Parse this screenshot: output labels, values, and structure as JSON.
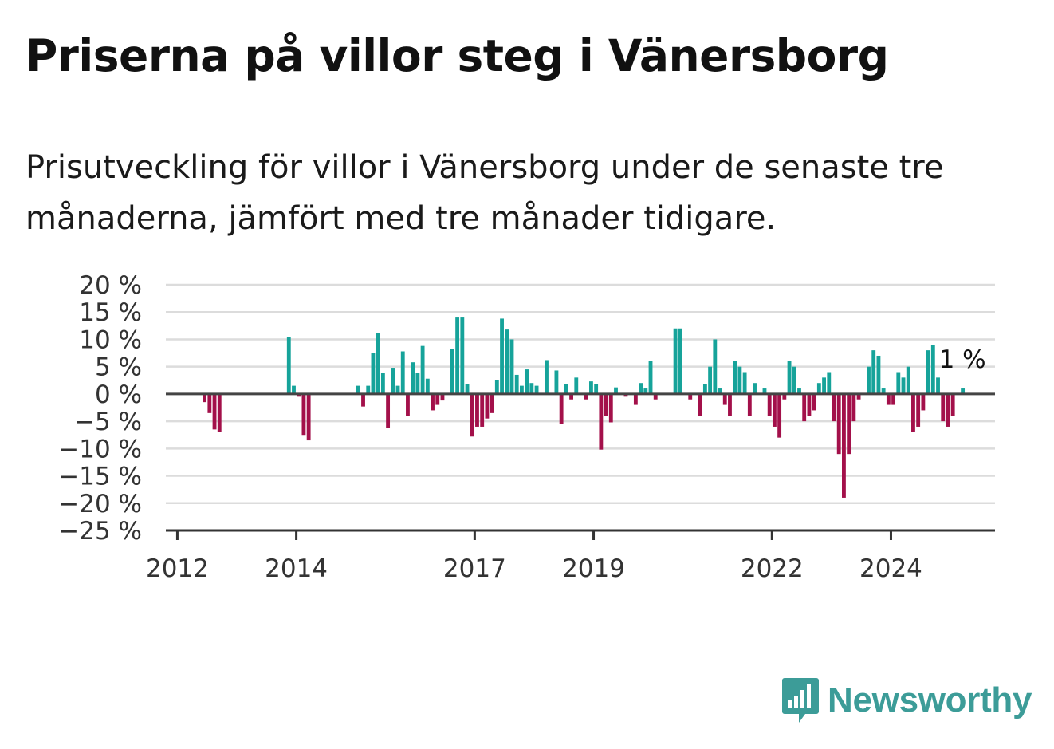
{
  "header": {
    "title": "Priserna på villor steg i Vänersborg",
    "subtitle": "Prisutveckling för villor i Vänersborg under de senaste tre månaderna, jämfört med tre månader tidigare."
  },
  "brand": {
    "name": "Newsworthy",
    "icon": "newsworthy-logo-icon",
    "color": "#3c9c98"
  },
  "chart_data": {
    "type": "bar",
    "unit": "%",
    "ylim": [
      -25,
      20
    ],
    "yticks": [
      20,
      15,
      10,
      5,
      0,
      -5,
      -10,
      -15,
      -20,
      -25
    ],
    "ytick_labels": [
      "20 %",
      "15 %",
      "10 %",
      "5 %",
      "0 %",
      "−5 %",
      "−10 %",
      "−15 %",
      "−20 %",
      "−25 %"
    ],
    "xlim": [
      "2011-11",
      "2025-10"
    ],
    "xticks": [
      "2012",
      "2014",
      "2017",
      "2019",
      "2022",
      "2024"
    ],
    "grid": true,
    "colors": {
      "positive": "#16a39a",
      "negative": "#a3104a",
      "zero_line": "#444444"
    },
    "annotation": {
      "label": "1 %",
      "date": "2025-03",
      "value": 1
    },
    "points": [
      {
        "date": "2012-06",
        "value": -1.5
      },
      {
        "date": "2012-07",
        "value": -3.5
      },
      {
        "date": "2012-08",
        "value": -6.5
      },
      {
        "date": "2012-09",
        "value": -7
      },
      {
        "date": "2013-11",
        "value": 10.5
      },
      {
        "date": "2013-12",
        "value": 1.5
      },
      {
        "date": "2014-01",
        "value": -0.5
      },
      {
        "date": "2014-02",
        "value": -7.5
      },
      {
        "date": "2014-03",
        "value": -8.5
      },
      {
        "date": "2015-01",
        "value": 1.5
      },
      {
        "date": "2015-02",
        "value": -2.3
      },
      {
        "date": "2015-03",
        "value": 1.5
      },
      {
        "date": "2015-04",
        "value": 7.5
      },
      {
        "date": "2015-05",
        "value": 11.2
      },
      {
        "date": "2015-06",
        "value": 3.8
      },
      {
        "date": "2015-07",
        "value": -6.2
      },
      {
        "date": "2015-08",
        "value": 4.8
      },
      {
        "date": "2015-09",
        "value": 1.5
      },
      {
        "date": "2015-10",
        "value": 7.8
      },
      {
        "date": "2015-11",
        "value": -4
      },
      {
        "date": "2015-12",
        "value": 5.8
      },
      {
        "date": "2016-01",
        "value": 3.8
      },
      {
        "date": "2016-02",
        "value": 8.8
      },
      {
        "date": "2016-03",
        "value": 2.8
      },
      {
        "date": "2016-04",
        "value": -3
      },
      {
        "date": "2016-05",
        "value": -2
      },
      {
        "date": "2016-06",
        "value": -1.2
      },
      {
        "date": "2016-08",
        "value": 8.2
      },
      {
        "date": "2016-09",
        "value": 14
      },
      {
        "date": "2016-10",
        "value": 14
      },
      {
        "date": "2016-11",
        "value": 1.8
      },
      {
        "date": "2016-12",
        "value": -7.8
      },
      {
        "date": "2017-01",
        "value": -6
      },
      {
        "date": "2017-02",
        "value": -6
      },
      {
        "date": "2017-03",
        "value": -4.5
      },
      {
        "date": "2017-04",
        "value": -3.5
      },
      {
        "date": "2017-05",
        "value": 2.5
      },
      {
        "date": "2017-06",
        "value": 13.8
      },
      {
        "date": "2017-07",
        "value": 11.8
      },
      {
        "date": "2017-08",
        "value": 10
      },
      {
        "date": "2017-09",
        "value": 3.5
      },
      {
        "date": "2017-10",
        "value": 1.5
      },
      {
        "date": "2017-11",
        "value": 4.5
      },
      {
        "date": "2017-12",
        "value": 2
      },
      {
        "date": "2018-01",
        "value": 1.5
      },
      {
        "date": "2018-03",
        "value": 6.2
      },
      {
        "date": "2018-05",
        "value": 4.3
      },
      {
        "date": "2018-06",
        "value": -5.5
      },
      {
        "date": "2018-07",
        "value": 1.8
      },
      {
        "date": "2018-08",
        "value": -1
      },
      {
        "date": "2018-09",
        "value": 3
      },
      {
        "date": "2018-11",
        "value": -1
      },
      {
        "date": "2018-12",
        "value": 2.3
      },
      {
        "date": "2019-01",
        "value": 1.8
      },
      {
        "date": "2019-02",
        "value": -10.2
      },
      {
        "date": "2019-03",
        "value": -4
      },
      {
        "date": "2019-04",
        "value": -5.2
      },
      {
        "date": "2019-05",
        "value": 1.2
      },
      {
        "date": "2019-07",
        "value": -0.5
      },
      {
        "date": "2019-09",
        "value": -2
      },
      {
        "date": "2019-10",
        "value": 2
      },
      {
        "date": "2019-11",
        "value": 1
      },
      {
        "date": "2019-12",
        "value": 6
      },
      {
        "date": "2020-01",
        "value": -1
      },
      {
        "date": "2020-05",
        "value": 12
      },
      {
        "date": "2020-06",
        "value": 12
      },
      {
        "date": "2020-08",
        "value": -1
      },
      {
        "date": "2020-10",
        "value": -4
      },
      {
        "date": "2020-11",
        "value": 1.8
      },
      {
        "date": "2020-12",
        "value": 5
      },
      {
        "date": "2021-01",
        "value": 10
      },
      {
        "date": "2021-02",
        "value": 1
      },
      {
        "date": "2021-03",
        "value": -2
      },
      {
        "date": "2021-04",
        "value": -4
      },
      {
        "date": "2021-05",
        "value": 6
      },
      {
        "date": "2021-06",
        "value": 5
      },
      {
        "date": "2021-07",
        "value": 4
      },
      {
        "date": "2021-08",
        "value": -4
      },
      {
        "date": "2021-09",
        "value": 2
      },
      {
        "date": "2021-11",
        "value": 1
      },
      {
        "date": "2021-12",
        "value": -4
      },
      {
        "date": "2022-01",
        "value": -6
      },
      {
        "date": "2022-02",
        "value": -8
      },
      {
        "date": "2022-03",
        "value": -1
      },
      {
        "date": "2022-04",
        "value": 6
      },
      {
        "date": "2022-05",
        "value": 5
      },
      {
        "date": "2022-06",
        "value": 1
      },
      {
        "date": "2022-07",
        "value": -5
      },
      {
        "date": "2022-08",
        "value": -4
      },
      {
        "date": "2022-09",
        "value": -3
      },
      {
        "date": "2022-10",
        "value": 2
      },
      {
        "date": "2022-11",
        "value": 3
      },
      {
        "date": "2022-12",
        "value": 4
      },
      {
        "date": "2023-01",
        "value": -5
      },
      {
        "date": "2023-02",
        "value": -11
      },
      {
        "date": "2023-03",
        "value": -19
      },
      {
        "date": "2023-04",
        "value": -11
      },
      {
        "date": "2023-05",
        "value": -5
      },
      {
        "date": "2023-06",
        "value": -1
      },
      {
        "date": "2023-08",
        "value": 5
      },
      {
        "date": "2023-09",
        "value": 8
      },
      {
        "date": "2023-10",
        "value": 7
      },
      {
        "date": "2023-11",
        "value": 1
      },
      {
        "date": "2023-12",
        "value": -2
      },
      {
        "date": "2024-01",
        "value": -2
      },
      {
        "date": "2024-02",
        "value": 4
      },
      {
        "date": "2024-03",
        "value": 3
      },
      {
        "date": "2024-04",
        "value": 5
      },
      {
        "date": "2024-05",
        "value": -7
      },
      {
        "date": "2024-06",
        "value": -6
      },
      {
        "date": "2024-07",
        "value": -3
      },
      {
        "date": "2024-08",
        "value": 8
      },
      {
        "date": "2024-09",
        "value": 9
      },
      {
        "date": "2024-10",
        "value": 3
      },
      {
        "date": "2024-11",
        "value": -5
      },
      {
        "date": "2024-12",
        "value": -6
      },
      {
        "date": "2025-01",
        "value": -4
      },
      {
        "date": "2025-03",
        "value": 1
      }
    ]
  }
}
